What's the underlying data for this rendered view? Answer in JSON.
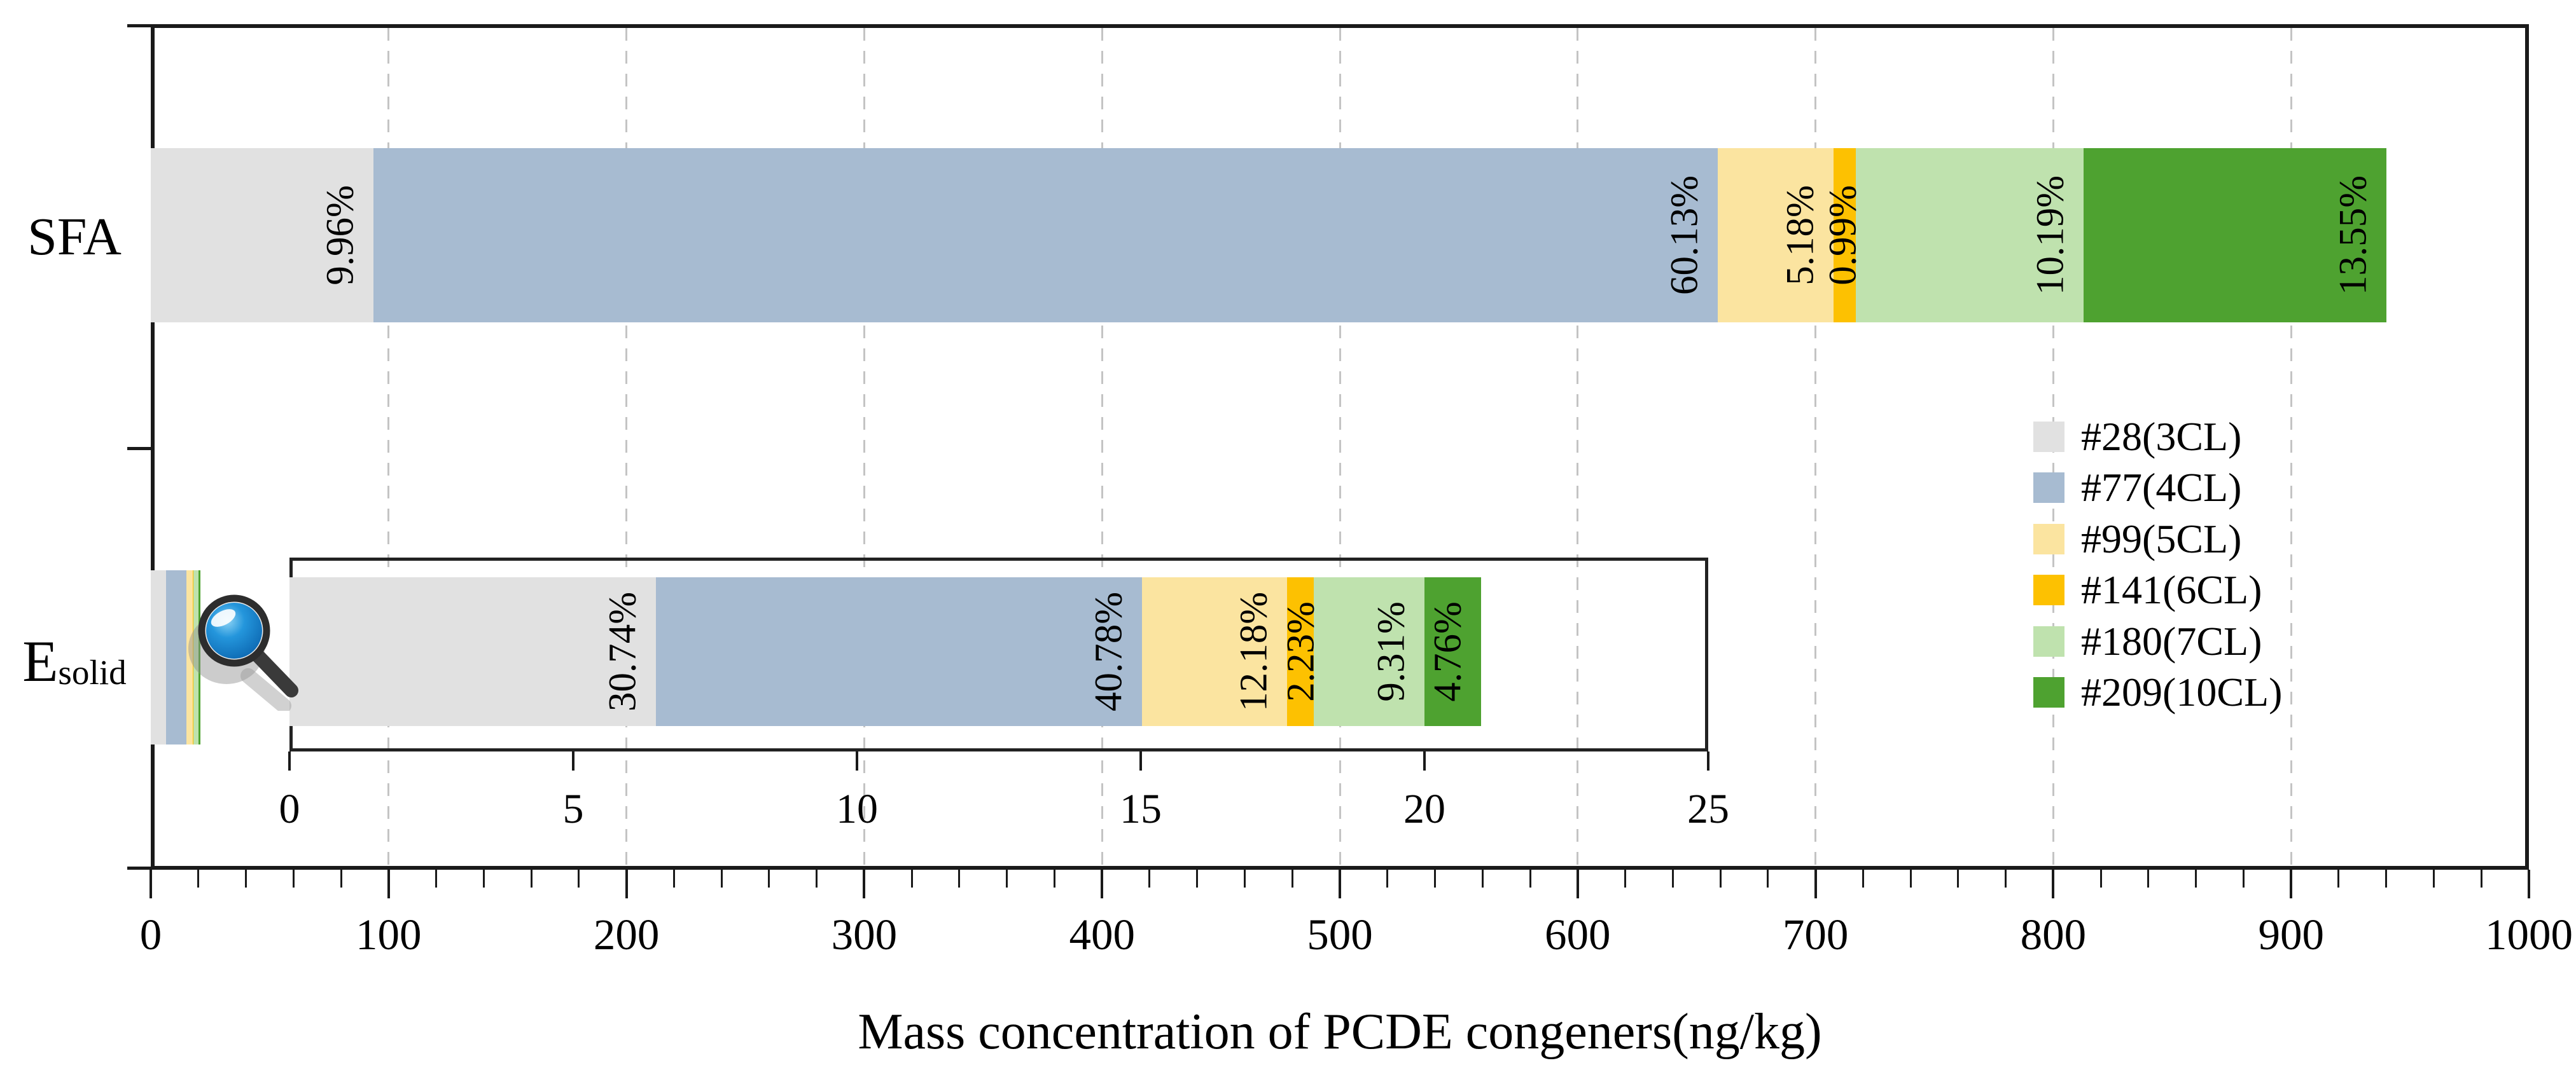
{
  "chart_data": {
    "type": "bar",
    "stacked": true,
    "orientation": "horizontal",
    "xlabel": "Mass concentration of PCDE congeners(ng/kg)",
    "categories": [
      "SFA",
      "Esolid"
    ],
    "categories_display": [
      {
        "base": "SFA",
        "sub": ""
      },
      {
        "base": "E",
        "sub": "solid"
      }
    ],
    "xlim": [
      0,
      1000
    ],
    "x_major_tick_step": 100,
    "x_minor_tick_step": 20,
    "x_tick_labels": [
      "0",
      "100",
      "200",
      "300",
      "400",
      "500",
      "600",
      "700",
      "800",
      "900",
      "1000"
    ],
    "grid": {
      "vertical_dashed_at_majors": true,
      "color": "#c4c4c4"
    },
    "totals_ng_per_kg": {
      "SFA": 940,
      "Esolid": 21
    },
    "series": [
      {
        "label": "#28(3CL)",
        "color": "#e1e1e1",
        "pct": {
          "SFA": 9.96,
          "Esolid": 30.74
        },
        "pct_text": {
          "SFA": "9.96%",
          "Esolid": "30.74%"
        },
        "ng_per_kg": {
          "SFA": 93.6,
          "Esolid": 6.5
        }
      },
      {
        "label": "#77(4CL)",
        "color": "#a7bbd1",
        "pct": {
          "SFA": 60.13,
          "Esolid": 40.78
        },
        "pct_text": {
          "SFA": "60.13%",
          "Esolid": "40.78%"
        },
        "ng_per_kg": {
          "SFA": 565.2,
          "Esolid": 8.6
        }
      },
      {
        "label": "#99(5CL)",
        "color": "#fbe4a0",
        "pct": {
          "SFA": 5.18,
          "Esolid": 12.18
        },
        "pct_text": {
          "SFA": "5.18%",
          "Esolid": "12.18%"
        },
        "ng_per_kg": {
          "SFA": 48.7,
          "Esolid": 2.6
        }
      },
      {
        "label": "#141(6CL)",
        "color": "#fdc101",
        "pct": {
          "SFA": 0.99,
          "Esolid": 2.23
        },
        "pct_text": {
          "SFA": "0.99%",
          "Esolid": "2.23%"
        },
        "ng_per_kg": {
          "SFA": 9.3,
          "Esolid": 0.5
        }
      },
      {
        "label": "#180(7CL)",
        "color": "#bfe2ae",
        "pct": {
          "SFA": 10.19,
          "Esolid": 9.31
        },
        "pct_text": {
          "SFA": "10.19%",
          "Esolid": "9.31%"
        },
        "ng_per_kg": {
          "SFA": 95.8,
          "Esolid": 2.0
        }
      },
      {
        "label": "#209(10CL)",
        "color": "#4ea230",
        "pct": {
          "SFA": 13.55,
          "Esolid": 4.76
        },
        "pct_text": {
          "SFA": "13.55%",
          "Esolid": "4.76%"
        },
        "ng_per_kg": {
          "SFA": 127.4,
          "Esolid": 1.0
        }
      }
    ],
    "inset": {
      "description": "zoomed view of Esolid bar",
      "xlim": [
        0,
        25
      ],
      "x_major_tick_step": 5,
      "x_tick_labels": [
        "0",
        "5",
        "10",
        "15",
        "20",
        "25"
      ],
      "total_ng_per_kg": 21
    },
    "legend_position": "inside-right-middle"
  }
}
